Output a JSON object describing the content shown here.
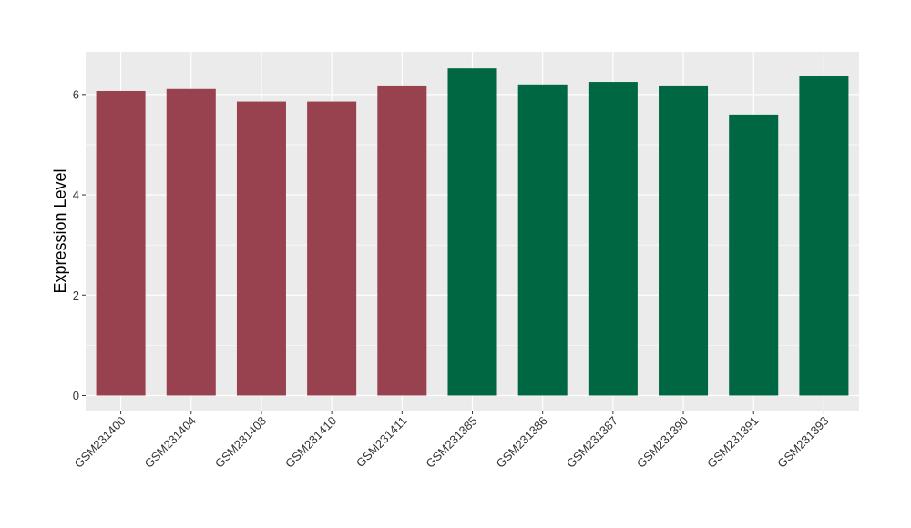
{
  "chart_data": {
    "type": "bar",
    "title": "",
    "xlabel": "",
    "ylabel": "Expression Level",
    "ylim": [
      -0.3,
      6.85
    ],
    "yticks": [
      0,
      2,
      4,
      6
    ],
    "grid": true,
    "legend": "none",
    "categories": [
      "GSM231400",
      "GSM231404",
      "GSM231408",
      "GSM231410",
      "GSM231411",
      "GSM231385",
      "GSM231386",
      "GSM231387",
      "GSM231390",
      "GSM231391",
      "GSM231393"
    ],
    "values": [
      6.07,
      6.11,
      5.86,
      5.86,
      6.18,
      6.52,
      6.2,
      6.25,
      6.18,
      5.6,
      6.36
    ],
    "groups": [
      "a",
      "a",
      "a",
      "a",
      "a",
      "b",
      "b",
      "b",
      "b",
      "b",
      "b"
    ],
    "colors": {
      "a": "#99424f",
      "b": "#006743",
      "panel_bg": "#ebebeb",
      "grid": "#ffffff"
    }
  }
}
